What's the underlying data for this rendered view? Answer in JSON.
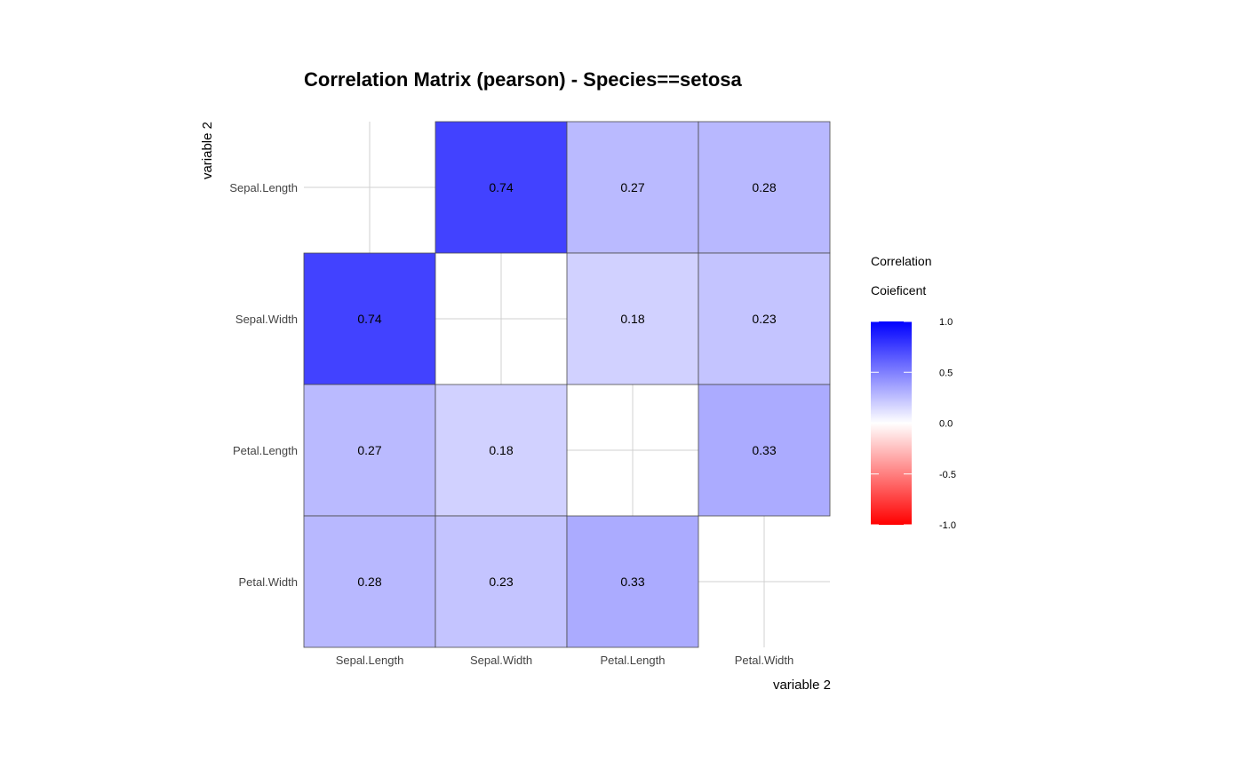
{
  "chart_data": {
    "type": "heatmap",
    "title": "Correlation Matrix (pearson) - Species==setosa",
    "xlabel": "variable 2",
    "ylabel": "variable 2",
    "variables": [
      "Sepal.Length",
      "Sepal.Width",
      "Petal.Length",
      "Petal.Width"
    ],
    "values": [
      [
        null,
        0.74,
        0.27,
        0.28
      ],
      [
        0.74,
        null,
        0.18,
        0.23
      ],
      [
        0.27,
        0.18,
        null,
        0.33
      ],
      [
        0.28,
        0.23,
        0.33,
        null
      ]
    ],
    "value_labels": [
      [
        "",
        "0.74",
        "0.27",
        "0.28"
      ],
      [
        "0.74",
        "",
        "0.18",
        "0.23"
      ],
      [
        "0.27",
        "0.18",
        "",
        "0.33"
      ],
      [
        "0.28",
        "0.23",
        "0.33",
        ""
      ]
    ],
    "color_scale": {
      "low": "#ff0000",
      "mid": "#ffffff",
      "high": "#0000ff",
      "limits": [
        -1.0,
        1.0
      ]
    },
    "legend": {
      "title_line1": "Correlation",
      "title_line2": "Coieficent",
      "ticks": [
        "1.0",
        "0.5",
        "0.0",
        "-0.5",
        "-1.0"
      ],
      "tick_values": [
        1.0,
        0.5,
        0.0,
        -0.5,
        -1.0
      ],
      "placement": "right"
    },
    "grid": true
  }
}
